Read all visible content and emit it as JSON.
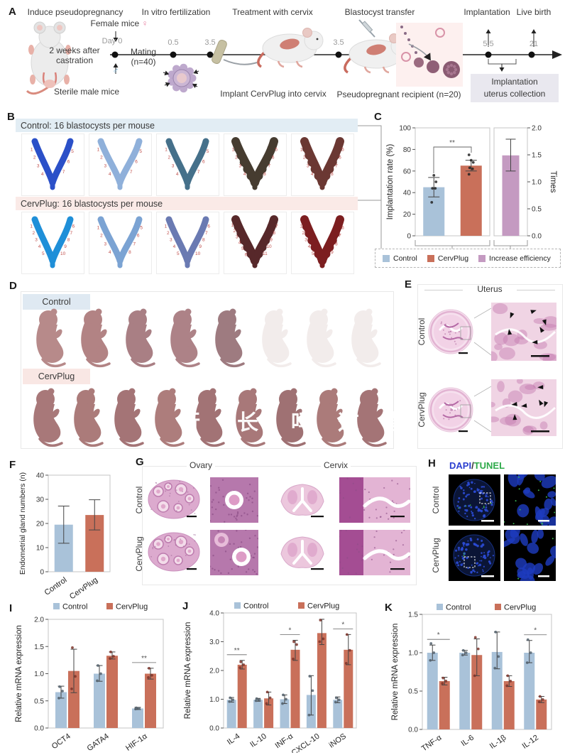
{
  "colors": {
    "control": "#a9c2d9",
    "cervplug": "#c9705a",
    "increase": "#c49ac1",
    "band_blue": "#e2edf4",
    "band_pink": "#faeae7",
    "note_box": "#e9e8ef",
    "red_number": "#c0504d",
    "dapi": "#2b3fd0",
    "tunel": "#2faa4a"
  },
  "panel_a": {
    "label": "A",
    "steps": [
      "Induce pseudopregnancy",
      "In vitro fertilization",
      "Treatment with cervix",
      "Blastocyst transfer",
      "Implantation",
      "Live birth"
    ],
    "ticks": [
      "Day 0",
      "0.5",
      "3.5",
      "3.5",
      "5.5",
      "21"
    ],
    "female_mice": "Female mice",
    "female_symbol": "♀",
    "male_symbol": "♂",
    "castration_line1": "2 weeks after",
    "castration_line2": "castration",
    "mating_line1": "Mating",
    "mating_line2": "(n=40)",
    "sterile_note": "Sterile male mice",
    "implant_note": "Implant CervPlug into cervix",
    "recipient_note": "Pseudopregnant recipient (n=20)",
    "box_line1": "Implantation",
    "box_line2": "uterus collection"
  },
  "panel_b": {
    "label": "B",
    "control_header": "Control: 16 blastocysts per mouse",
    "cervplug_header": "CervPlug: 16 blastocysts per mouse",
    "control_site_counts": [
      7,
      7,
      7,
      8,
      8
    ],
    "cervplug_site_counts": [
      10,
      8,
      10,
      11,
      9
    ],
    "control_uterus_colors": [
      "#2b50c8",
      "#8fb0da",
      "#45708a",
      "#463c30",
      "#6b3833"
    ],
    "cervplug_uterus_colors": [
      "#1f8fd8",
      "#7ba3d3",
      "#6a7ab2",
      "#57282a",
      "#7c1e20"
    ]
  },
  "panel_c": {
    "label": "C"
  },
  "panel_d": {
    "label": "D",
    "control": "Control",
    "cervplug": "CervPlug",
    "control_pups_normal": 5,
    "control_pups_pale": 3,
    "cervplug_pups": 9,
    "watermark": [
      "行",
      "长",
      "吗",
      "这",
      "营"
    ]
  },
  "panel_e": {
    "label": "E",
    "title": "Uterus",
    "rows": [
      "Control",
      "CervPlug"
    ]
  },
  "panel_f": {
    "label": "F"
  },
  "panel_g": {
    "label": "G",
    "columns": [
      "Ovary",
      "Cervix"
    ],
    "rows": [
      "Control",
      "CervPlug"
    ]
  },
  "panel_h": {
    "label": "H",
    "title_dapi": "DAPI",
    "title_slash": "/",
    "title_tunel": "TUNEL",
    "rows": [
      "Control",
      "CervPlug"
    ]
  },
  "panel_i": {
    "label": "I"
  },
  "panel_j": {
    "label": "J"
  },
  "panel_k": {
    "label": "K"
  },
  "chart_data": [
    {
      "panel": "C",
      "type": "bar",
      "ylabel": "Implantation rate (%)",
      "ylim": [
        0,
        100
      ],
      "yticks": [
        "0",
        "20",
        "40",
        "60",
        "80",
        "100"
      ],
      "categories": [
        "Control",
        "CervPlug"
      ],
      "values": [
        45,
        65
      ],
      "errors": [
        [
          36,
          54
        ],
        [
          60,
          70
        ]
      ],
      "points": [
        [
          31,
          44,
          44,
          50,
          56
        ],
        [
          57,
          62,
          63,
          68,
          70,
          75
        ]
      ],
      "sig": {
        "text": "**",
        "between": [
          "Control",
          "CervPlug"
        ]
      },
      "secondary": {
        "ylabel": "Times",
        "ylim": [
          0,
          2
        ],
        "yticks": [
          "0.0",
          "0.5",
          "1.0",
          "1.5",
          "2.0"
        ],
        "category": "Increase efficiency",
        "value": 1.49,
        "error": [
          1.2,
          1.79
        ]
      },
      "legend": [
        "Control",
        "CervPlug",
        "Increase efficiency"
      ]
    },
    {
      "panel": "F",
      "type": "bar",
      "ylabel": "Endometrial gland numbers (n)",
      "ylim": [
        0,
        40
      ],
      "yticks": [
        "0",
        "10",
        "20",
        "30",
        "40"
      ],
      "categories": [
        "Control",
        "CervPlug"
      ],
      "values": [
        19.5,
        23.5
      ],
      "errors": [
        [
          11.8,
          27.2
        ],
        [
          17.3,
          29.8
        ]
      ]
    },
    {
      "panel": "I",
      "type": "grouped-bar",
      "ylabel": "Relative mRNA expression",
      "ylim": [
        0,
        2
      ],
      "yticks": [
        "0.0",
        "0.5",
        "1.0",
        "1.5",
        "2.0"
      ],
      "categories": [
        "OCT4",
        "GATA4",
        "HIF-1α"
      ],
      "legend": [
        "Control",
        "CervPlug"
      ],
      "series": [
        {
          "name": "Control",
          "values": [
            0.66,
            1.0,
            0.36
          ],
          "errors": [
            [
              0.55,
              0.77
            ],
            [
              0.86,
              1.15
            ],
            [
              0.34,
              0.38
            ]
          ],
          "points": [
            [
              0.55,
              0.68,
              0.76
            ],
            [
              0.87,
              1.0,
              1.15
            ],
            [
              0.35,
              0.36,
              0.37
            ]
          ]
        },
        {
          "name": "CervPlug",
          "values": [
            1.05,
            1.33,
            1.0
          ],
          "errors": [
            [
              0.65,
              1.45
            ],
            [
              1.27,
              1.4
            ],
            [
              0.9,
              1.1
            ]
          ],
          "points": [
            [
              0.72,
              0.95,
              1.48
            ],
            [
              1.28,
              1.32,
              1.4
            ],
            [
              0.93,
              0.97,
              1.1
            ]
          ]
        }
      ],
      "sig": [
        {
          "category": "HIF-1α",
          "text": "**"
        }
      ]
    },
    {
      "panel": "J",
      "type": "grouped-bar",
      "ylabel": "Relative mRNA expression",
      "ylim": [
        0,
        4
      ],
      "yticks": [
        "0.0",
        "1.0",
        "2.0",
        "3.0",
        "4.0"
      ],
      "categories": [
        "IL-4",
        "IL-10",
        "INF-α",
        "CXCL-10",
        "iNOS"
      ],
      "legend": [
        "Control",
        "CervPlug"
      ],
      "series": [
        {
          "name": "Control",
          "values": [
            0.98,
            0.98,
            1.0,
            1.15,
            0.98
          ],
          "errors": [
            [
              0.9,
              1.06
            ],
            [
              0.93,
              1.03
            ],
            [
              0.85,
              1.15
            ],
            [
              0.45,
              1.82
            ],
            [
              0.88,
              1.08
            ]
          ],
          "points": [
            [
              0.92,
              0.98,
              1.05
            ],
            [
              0.95,
              0.98,
              1.02
            ],
            [
              0.85,
              1.0,
              1.15
            ],
            [
              0.45,
              1.3,
              1.8
            ],
            [
              0.9,
              0.98,
              1.05
            ]
          ]
        },
        {
          "name": "CervPlug",
          "values": [
            2.2,
            1.03,
            2.72,
            3.3,
            2.72
          ],
          "errors": [
            [
              2.05,
              2.35
            ],
            [
              0.8,
              1.25
            ],
            [
              2.35,
              3.05
            ],
            [
              2.9,
              3.78
            ],
            [
              2.2,
              3.25
            ]
          ],
          "points": [
            [
              2.1,
              2.2,
              2.3
            ],
            [
              0.85,
              1.05,
              1.25
            ],
            [
              2.4,
              2.9,
              3.0
            ],
            [
              3.0,
              3.1,
              3.75
            ],
            [
              2.25,
              2.7,
              3.25
            ]
          ]
        }
      ],
      "sig": [
        {
          "category": "IL-4",
          "text": "**"
        },
        {
          "category": "INF-α",
          "text": "*"
        },
        {
          "category": "iNOS",
          "text": "*"
        }
      ]
    },
    {
      "panel": "K",
      "type": "grouped-bar",
      "ylabel": "Relative mRNA expression",
      "ylim": [
        0,
        1.5
      ],
      "yticks": [
        "0.0",
        "0.5",
        "1.0",
        "1.5"
      ],
      "categories": [
        "TNF-α",
        "IL-6",
        "IL-1β",
        "IL-12"
      ],
      "legend": [
        "Control",
        "CervPlug"
      ],
      "series": [
        {
          "name": "Control",
          "values": [
            1.0,
            1.0,
            1.01,
            1.0
          ],
          "errors": [
            [
              0.9,
              1.1
            ],
            [
              0.97,
              1.03
            ],
            [
              0.79,
              1.27
            ],
            [
              0.87,
              1.16
            ]
          ],
          "points": [
            [
              0.9,
              1.0,
              1.12
            ],
            [
              0.97,
              1.0,
              1.03
            ],
            [
              0.8,
              0.95,
              1.27
            ],
            [
              0.87,
              1.0,
              1.17
            ]
          ]
        },
        {
          "name": "CervPlug",
          "values": [
            0.63,
            0.97,
            0.63,
            0.39
          ],
          "errors": [
            [
              0.58,
              0.68
            ],
            [
              0.7,
              1.18
            ],
            [
              0.56,
              0.7
            ],
            [
              0.35,
              0.43
            ]
          ],
          "points": [
            [
              0.6,
              0.63,
              0.67
            ],
            [
              0.7,
              1.05,
              1.2
            ],
            [
              0.57,
              0.63,
              0.7
            ],
            [
              0.36,
              0.39,
              0.43
            ]
          ]
        }
      ],
      "sig": [
        {
          "category": "TNF-α",
          "text": "*"
        },
        {
          "category": "IL-12",
          "text": "*"
        }
      ]
    }
  ]
}
